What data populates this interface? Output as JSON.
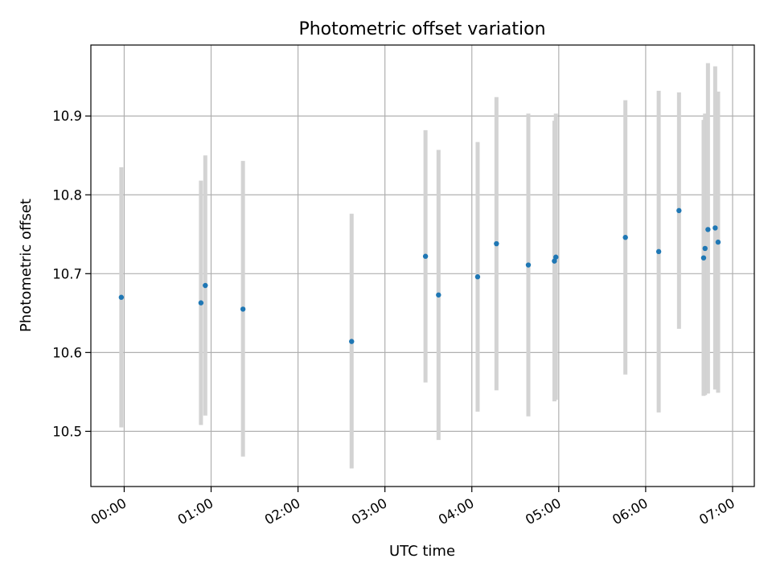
{
  "chart_data": {
    "type": "scatter",
    "title": "Photometric offset variation",
    "xlabel": "UTC time",
    "ylabel": "Photometric offset",
    "x_ticks": [
      "00:00",
      "01:00",
      "02:00",
      "03:00",
      "04:00",
      "05:00",
      "06:00",
      "07:00"
    ],
    "y_ticks": [
      "10.5",
      "10.6",
      "10.7",
      "10.8",
      "10.9"
    ],
    "xlim": [
      "-00:23",
      "07:15"
    ],
    "ylim": [
      10.43,
      10.99
    ],
    "grid": true,
    "colors": {
      "marker": "#1f77b4",
      "errorbar": "#d3d3d3",
      "grid": "#b0b0b0"
    },
    "series": [
      {
        "points": [
          {
            "x": "23:58",
            "y": 10.67,
            "lo": 10.505,
            "hi": 10.835
          },
          {
            "x": "00:53",
            "y": 10.663,
            "lo": 10.508,
            "hi": 10.818
          },
          {
            "x": "00:56",
            "y": 10.685,
            "lo": 10.52,
            "hi": 10.85
          },
          {
            "x": "01:22",
            "y": 10.655,
            "lo": 10.468,
            "hi": 10.843
          },
          {
            "x": "02:37",
            "y": 10.614,
            "lo": 10.453,
            "hi": 10.776
          },
          {
            "x": "03:28",
            "y": 10.722,
            "lo": 10.562,
            "hi": 10.882
          },
          {
            "x": "03:37",
            "y": 10.673,
            "lo": 10.489,
            "hi": 10.857
          },
          {
            "x": "04:04",
            "y": 10.696,
            "lo": 10.525,
            "hi": 10.867
          },
          {
            "x": "04:17",
            "y": 10.738,
            "lo": 10.552,
            "hi": 10.924
          },
          {
            "x": "04:39",
            "y": 10.711,
            "lo": 10.519,
            "hi": 10.903
          },
          {
            "x": "04:57",
            "y": 10.716,
            "lo": 10.538,
            "hi": 10.894
          },
          {
            "x": "04:58",
            "y": 10.721,
            "lo": 10.54,
            "hi": 10.903
          },
          {
            "x": "05:46",
            "y": 10.746,
            "lo": 10.572,
            "hi": 10.92
          },
          {
            "x": "06:09",
            "y": 10.728,
            "lo": 10.524,
            "hi": 10.932
          },
          {
            "x": "06:23",
            "y": 10.78,
            "lo": 10.63,
            "hi": 10.93
          },
          {
            "x": "06:40",
            "y": 10.72,
            "lo": 10.545,
            "hi": 10.895
          },
          {
            "x": "06:41",
            "y": 10.732,
            "lo": 10.546,
            "hi": 10.903
          },
          {
            "x": "06:43",
            "y": 10.756,
            "lo": 10.548,
            "hi": 10.967
          },
          {
            "x": "06:48",
            "y": 10.758,
            "lo": 10.553,
            "hi": 10.963
          },
          {
            "x": "06:50",
            "y": 10.74,
            "lo": 10.549,
            "hi": 10.931
          }
        ]
      }
    ]
  }
}
